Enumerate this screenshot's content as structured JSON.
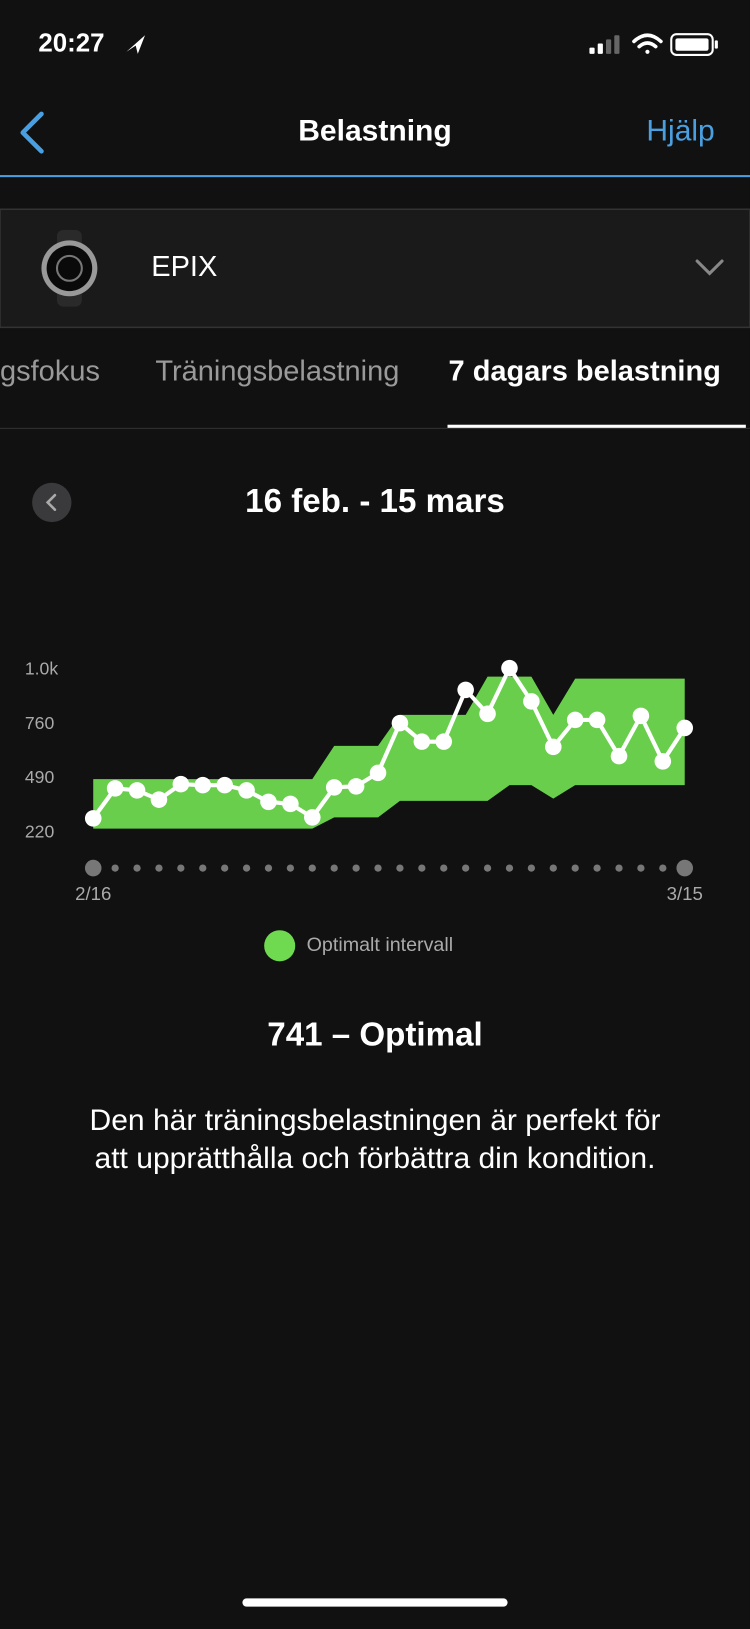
{
  "status_bar": {
    "time": "20:27"
  },
  "nav": {
    "title": "Belastning",
    "help": "Hjälp"
  },
  "device": {
    "name": "EPIX"
  },
  "tabs": [
    "gsfokus",
    "Träningsbelastning",
    "7 dagars belastning"
  ],
  "date_range": "16 feb. - 15 mars",
  "chart_data": {
    "type": "line",
    "categories": [
      "2/16",
      null,
      null,
      null,
      null,
      null,
      null,
      null,
      null,
      null,
      null,
      null,
      null,
      null,
      null,
      null,
      null,
      null,
      null,
      null,
      null,
      null,
      null,
      null,
      null,
      null,
      null,
      "3/15"
    ],
    "values": [
      292,
      441,
      431,
      385,
      462,
      457,
      457,
      431,
      374,
      364,
      297,
      446,
      451,
      518,
      765,
      673,
      673,
      930,
      811,
      1038,
      873,
      647,
      781,
      781,
      601,
      801,
      575,
      741
    ],
    "color": "#ffffff",
    "band": {
      "name": "Optimalt intervall",
      "color": "#6fd94f",
      "upper": [
        487,
        487,
        487,
        487,
        487,
        487,
        487,
        487,
        487,
        487,
        487,
        652,
        652,
        652,
        806,
        806,
        806,
        806,
        996,
        996,
        996,
        806,
        986,
        986,
        986,
        986,
        986,
        986
      ],
      "lower": [
        241,
        241,
        241,
        241,
        241,
        241,
        241,
        241,
        241,
        241,
        241,
        297,
        297,
        297,
        379,
        379,
        379,
        379,
        379,
        457,
        457,
        390,
        457,
        457,
        457,
        457,
        457,
        457
      ]
    },
    "ylim": [
      180,
      1080
    ],
    "yticks": [
      220,
      490,
      760,
      {
        "value": 1030,
        "label": "1.0k"
      }
    ],
    "grid": false
  },
  "result": {
    "title": "741 – Optimal",
    "description": [
      "Den här träningsbelastningen är perfekt för",
      "att upprätthålla och förbättra din kondition."
    ]
  }
}
